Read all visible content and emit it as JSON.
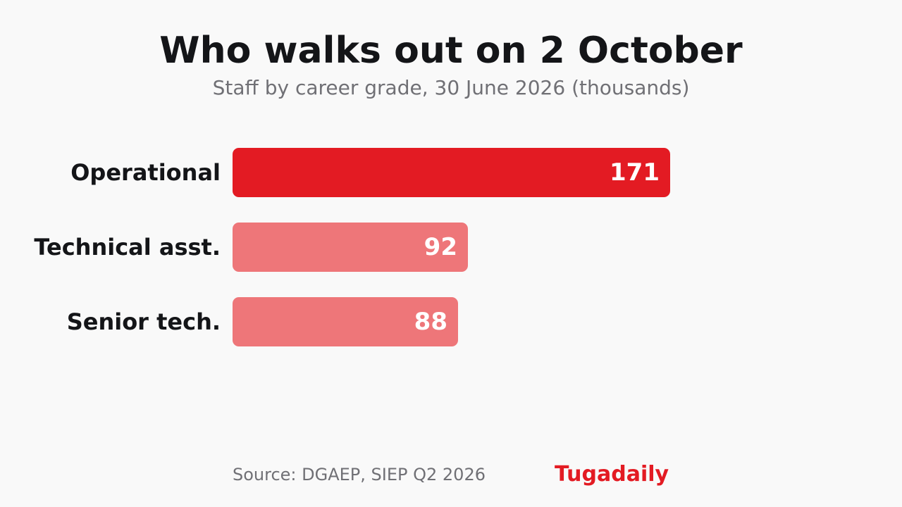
{
  "chart_data": {
    "type": "bar",
    "orientation": "horizontal",
    "title": "Who walks out on 2 October",
    "subtitle": "Staff by career grade, 30 June 2026 (thousands)",
    "categories": [
      "Operational",
      "Technical asst.",
      "Senior tech."
    ],
    "values": [
      171,
      92,
      88
    ],
    "xlim": [
      0,
      171
    ],
    "grid": false,
    "legend": "none",
    "colors": {
      "highlight": "#e31b23",
      "muted": "#ee7679",
      "value_text": "#ffffff"
    },
    "highlight_index": 0
  },
  "footer": {
    "source": "Source: DGAEP, SIEP Q2 2026",
    "brand": "Tugadaily"
  }
}
